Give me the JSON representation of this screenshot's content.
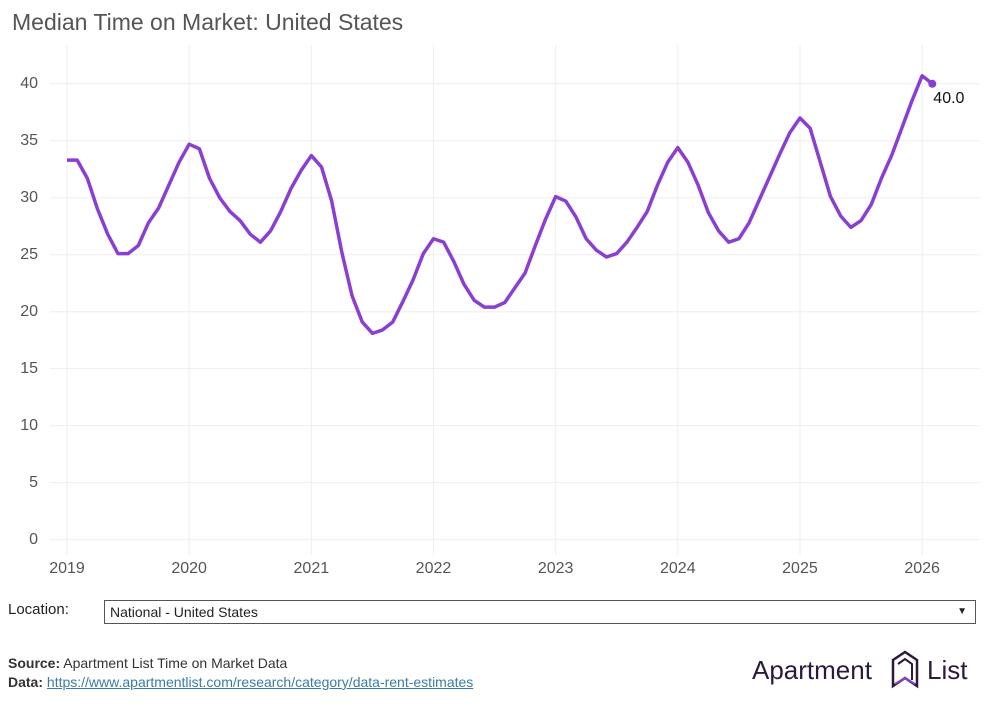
{
  "chart_data": {
    "type": "line",
    "title": "Median Time on Market: United States",
    "categories": [
      "2019",
      null,
      null,
      null,
      null,
      null,
      null,
      null,
      null,
      null,
      null,
      null,
      "2020",
      null,
      null,
      null,
      null,
      null,
      null,
      null,
      null,
      null,
      null,
      null,
      "2021",
      null,
      null,
      null,
      null,
      null,
      null,
      null,
      null,
      null,
      null,
      null,
      "2022",
      null,
      null,
      null,
      null,
      null,
      null,
      null,
      null,
      null,
      null,
      null,
      "2023",
      null,
      null,
      null,
      null,
      null,
      null,
      null,
      null,
      null,
      null,
      null,
      "2024",
      null,
      null,
      null,
      null,
      null,
      null,
      null,
      null,
      null,
      null,
      null,
      "2025",
      null,
      null,
      null,
      null,
      null,
      null,
      null,
      null,
      null,
      null,
      null,
      "2026",
      null
    ],
    "values": [
      33.3,
      33.3,
      31.7,
      29.0,
      26.8,
      25.1,
      25.1,
      25.8,
      27.8,
      29.1,
      31.1,
      33.1,
      34.7,
      34.3,
      31.7,
      30.0,
      28.8,
      28.0,
      26.8,
      26.1,
      27.1,
      28.8,
      30.8,
      32.4,
      33.7,
      32.7,
      29.7,
      25.2,
      21.4,
      19.1,
      18.1,
      18.4,
      19.1,
      20.9,
      22.8,
      25.1,
      26.4,
      26.1,
      24.4,
      22.4,
      21.0,
      20.4,
      20.4,
      20.8,
      22.1,
      23.4,
      25.8,
      28.1,
      30.1,
      29.7,
      28.3,
      26.4,
      25.4,
      24.8,
      25.1,
      26.1,
      27.4,
      28.8,
      31.1,
      33.1,
      34.4,
      33.1,
      31.1,
      28.7,
      27.1,
      26.1,
      26.4,
      27.8,
      29.8,
      31.8,
      33.8,
      35.7,
      37.0,
      36.1,
      33.1,
      30.1,
      28.4,
      27.4,
      28.0,
      29.4,
      31.7,
      33.7,
      36.1,
      38.5,
      40.7,
      40.0
    ],
    "value_labels": [
      null,
      null,
      null,
      null,
      null,
      null,
      null,
      null,
      null,
      null,
      null,
      null,
      null,
      null,
      null,
      null,
      null,
      null,
      null,
      null,
      null,
      null,
      null,
      null,
      null,
      null,
      null,
      null,
      null,
      null,
      null,
      null,
      null,
      null,
      null,
      null,
      null,
      null,
      null,
      null,
      null,
      null,
      null,
      null,
      null,
      null,
      null,
      null,
      null,
      null,
      null,
      null,
      null,
      null,
      null,
      null,
      null,
      null,
      null,
      null,
      null,
      null,
      null,
      null,
      null,
      null,
      null,
      null,
      null,
      null,
      null,
      null,
      null,
      null,
      null,
      null,
      null,
      null,
      null,
      null,
      null,
      null,
      null,
      null,
      null,
      "40.0"
    ],
    "color": "#8a3fd1",
    "ylim": [
      -1,
      42
    ],
    "yticks": [
      0,
      5,
      10,
      15,
      20,
      25,
      30,
      35,
      40
    ],
    "grid": true
  },
  "controls": {
    "location_label": "Location:",
    "location_value": "National - United States"
  },
  "footer": {
    "source_label": "Source:",
    "source_text": "Apartment List Time on Market Data",
    "data_label": "Data:",
    "data_url": "https://www.apartmentlist.com/research/category/data-rent-estimates"
  },
  "brand": [
    "Apartment",
    "List"
  ]
}
